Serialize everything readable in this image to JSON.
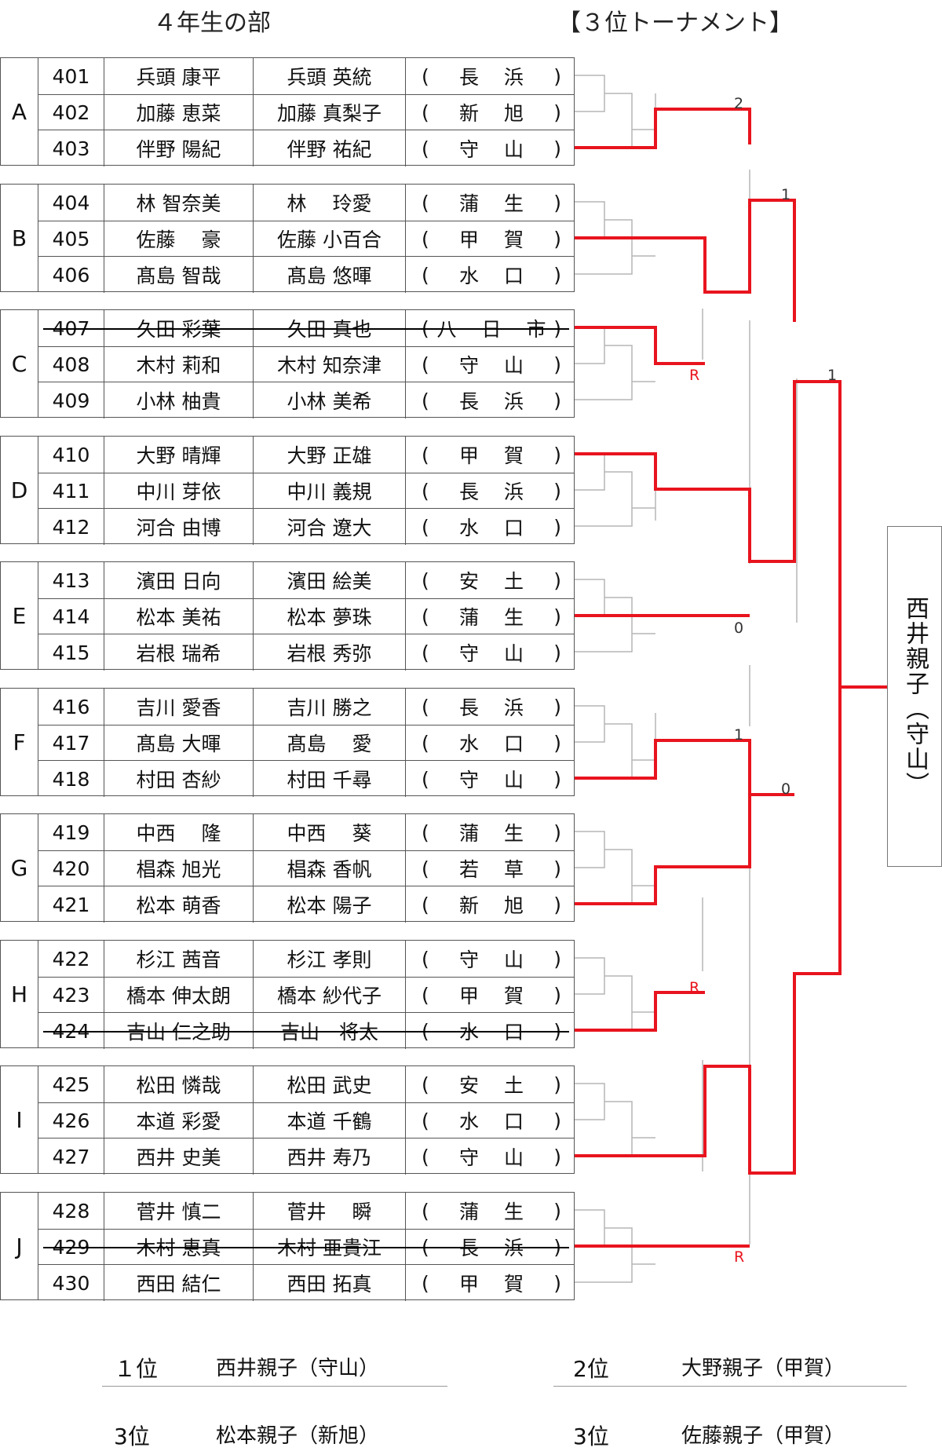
{
  "header": {
    "title_left": "４年生の部",
    "title_right": "【３位トーナメント】"
  },
  "groups": [
    {
      "label": "A",
      "rows": [
        {
          "no": "401",
          "child": "兵頭 康平",
          "parent": "兵頭 英統",
          "team": "長浜",
          "withdrawn": false
        },
        {
          "no": "402",
          "child": "加藤 恵菜",
          "parent": "加藤 真梨子",
          "team": "新旭",
          "withdrawn": false
        },
        {
          "no": "403",
          "child": "伴野 陽紀",
          "parent": "伴野 祐紀",
          "team": "守山",
          "withdrawn": false
        }
      ]
    },
    {
      "label": "B",
      "rows": [
        {
          "no": "404",
          "child": "林 智奈美",
          "parent": "林　 玲愛",
          "team": "蒲生",
          "withdrawn": false
        },
        {
          "no": "405",
          "child": "佐藤　 豪",
          "parent": "佐藤 小百合",
          "team": "甲賀",
          "withdrawn": false
        },
        {
          "no": "406",
          "child": "髙島 智哉",
          "parent": "髙島 悠暉",
          "team": "水口",
          "withdrawn": false
        }
      ]
    },
    {
      "label": "C",
      "rows": [
        {
          "no": "407",
          "child": "久田 彩葉",
          "parent": "久田 真也",
          "team": "八日市",
          "withdrawn": true
        },
        {
          "no": "408",
          "child": "木村 莉和",
          "parent": "木村 知奈津",
          "team": "守山",
          "withdrawn": false
        },
        {
          "no": "409",
          "child": "小林 柚貴",
          "parent": "小林 美希",
          "team": "長浜",
          "withdrawn": false
        }
      ]
    },
    {
      "label": "D",
      "rows": [
        {
          "no": "410",
          "child": "大野 晴輝",
          "parent": "大野 正雄",
          "team": "甲賀",
          "withdrawn": false
        },
        {
          "no": "411",
          "child": "中川 芽依",
          "parent": "中川 義規",
          "team": "長浜",
          "withdrawn": false
        },
        {
          "no": "412",
          "child": "河合 由博",
          "parent": "河合 遼大",
          "team": "水口",
          "withdrawn": false
        }
      ]
    },
    {
      "label": "E",
      "rows": [
        {
          "no": "413",
          "child": "濱田 日向",
          "parent": "濱田 絵美",
          "team": "安土",
          "withdrawn": false
        },
        {
          "no": "414",
          "child": "松本 美祐",
          "parent": "松本 夢珠",
          "team": "蒲生",
          "withdrawn": false
        },
        {
          "no": "415",
          "child": "岩根 瑞希",
          "parent": "岩根 秀弥",
          "team": "守山",
          "withdrawn": false
        }
      ]
    },
    {
      "label": "F",
      "rows": [
        {
          "no": "416",
          "child": "吉川 愛香",
          "parent": "吉川 勝之",
          "team": "長浜",
          "withdrawn": false
        },
        {
          "no": "417",
          "child": "髙島 大暉",
          "parent": "髙島　 愛",
          "team": "水口",
          "withdrawn": false
        },
        {
          "no": "418",
          "child": "村田 杏紗",
          "parent": "村田 千尋",
          "team": "守山",
          "withdrawn": false
        }
      ]
    },
    {
      "label": "G",
      "rows": [
        {
          "no": "419",
          "child": "中西　 隆",
          "parent": "中西　 葵",
          "team": "蒲生",
          "withdrawn": false
        },
        {
          "no": "420",
          "child": "椙森 旭光",
          "parent": "椙森 香帆",
          "team": "若草",
          "withdrawn": false
        },
        {
          "no": "421",
          "child": "松本 萌香",
          "parent": "松本 陽子",
          "team": "新旭",
          "withdrawn": false
        }
      ]
    },
    {
      "label": "H",
      "rows": [
        {
          "no": "422",
          "child": "杉江 茜音",
          "parent": "杉江 孝則",
          "team": "守山",
          "withdrawn": false
        },
        {
          "no": "423",
          "child": "橋本 伸太朗",
          "parent": "橋本 紗代子",
          "team": "甲賀",
          "withdrawn": false
        },
        {
          "no": "424",
          "child": "吉山 仁之助",
          "parent": "吉山　将太",
          "team": "水口",
          "withdrawn": true
        }
      ]
    },
    {
      "label": "I",
      "rows": [
        {
          "no": "425",
          "child": "松田 憐哉",
          "parent": "松田 武史",
          "team": "安土",
          "withdrawn": false
        },
        {
          "no": "426",
          "child": "本道 彩愛",
          "parent": "本道 千鶴",
          "team": "水口",
          "withdrawn": false
        },
        {
          "no": "427",
          "child": "西井 史美",
          "parent": "西井 寿乃",
          "team": "守山",
          "withdrawn": false
        }
      ]
    },
    {
      "label": "J",
      "rows": [
        {
          "no": "428",
          "child": "菅井 慎二",
          "parent": "菅井　 瞬",
          "team": "蒲生",
          "withdrawn": false
        },
        {
          "no": "429",
          "child": "木村 恵真",
          "parent": "木村 亜貴江",
          "team": "長浜",
          "withdrawn": true
        },
        {
          "no": "430",
          "child": "西田 結仁",
          "parent": "西田 拓真",
          "team": "甲賀",
          "withdrawn": false
        }
      ]
    }
  ],
  "bracket": {
    "scores": [
      "2",
      "1",
      "R",
      "1",
      "0",
      "1",
      "0",
      "R",
      "R"
    ],
    "colors": {
      "win_line": "#e8141e",
      "tree_line": "#b5b5b5"
    }
  },
  "winner": {
    "name": "西井親子（守山）"
  },
  "results": [
    {
      "rank": "１位",
      "name": "西井親子（守山）"
    },
    {
      "rank": "2位",
      "name": "大野親子（甲賀）"
    },
    {
      "rank": "3位",
      "name": "松本親子（新旭）"
    },
    {
      "rank": "3位",
      "name": "佐藤親子（甲賀）"
    }
  ]
}
